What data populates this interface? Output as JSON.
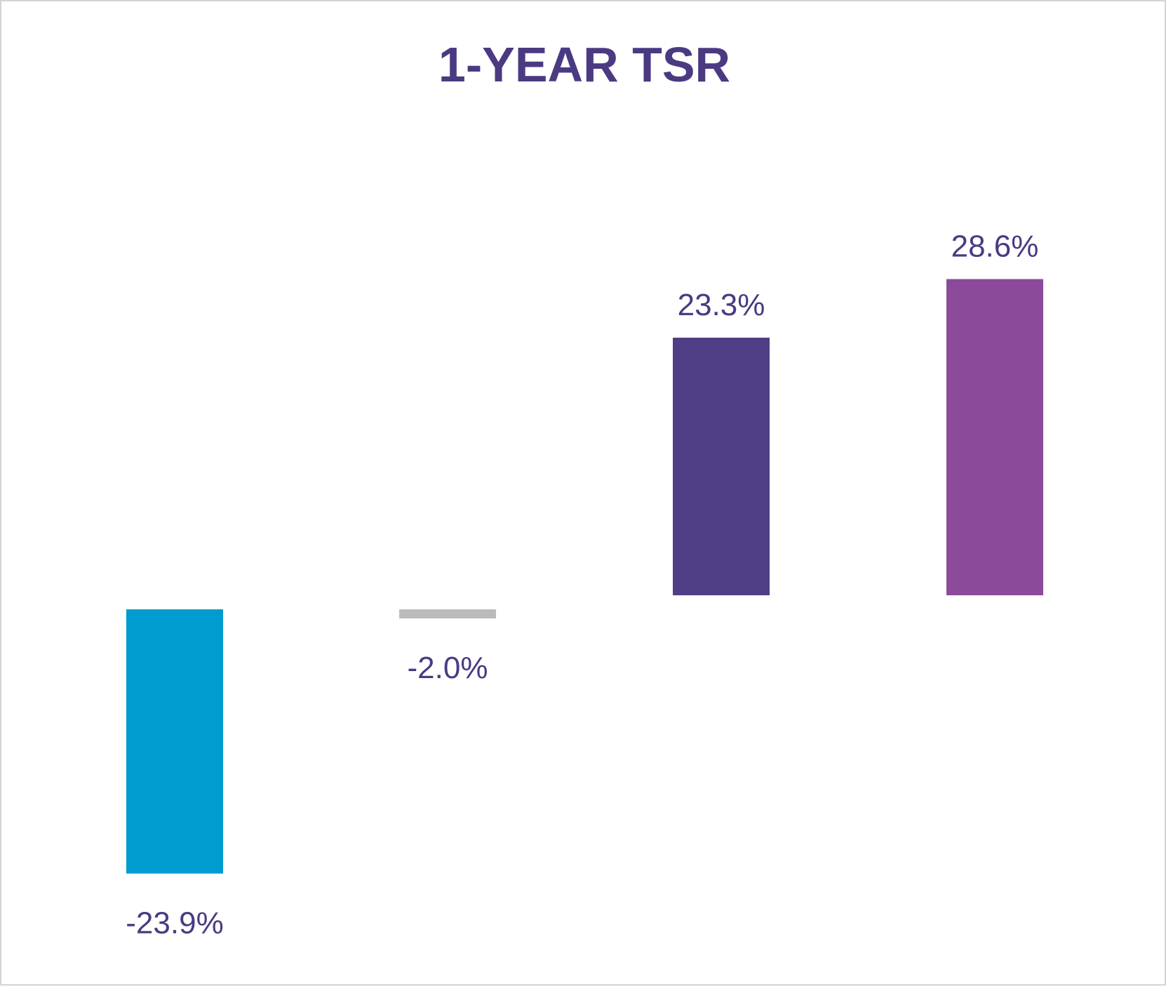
{
  "chart_data": {
    "type": "bar",
    "title": "1-YEAR TSR",
    "categories": [
      "",
      "",
      "",
      ""
    ],
    "values": [
      -23.9,
      -2.0,
      23.3,
      28.6
    ],
    "data_labels": [
      "-23.9%",
      "-2.0%",
      "23.3%",
      "28.6%"
    ],
    "colors": [
      "#009CCF",
      "#BBBBBB",
      "#4F3D85",
      "#8B4A9A"
    ],
    "text_color": "#4B3A82",
    "grid": false,
    "legend": "none",
    "axes_visible": false
  }
}
